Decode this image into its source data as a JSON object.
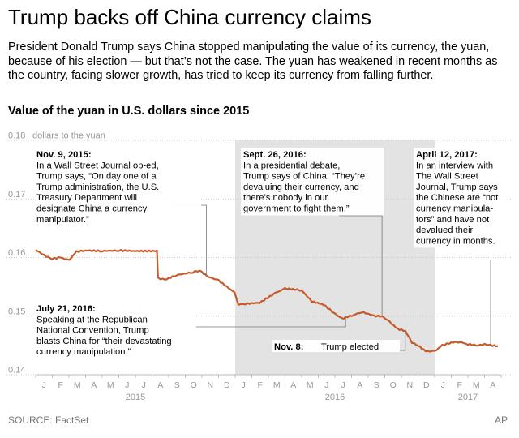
{
  "headline": "Trump backs off China currency claims",
  "intro": "President Donald Trump says China stopped manipulating the value of its currency, the yuan, because of his election — but that’s not the case. The yuan has weakened in recent months as the country, facing slower growth, has tried to keep its currency from falling further.",
  "footer": {
    "source": "SOURCE: FactSet",
    "credit": "AP"
  },
  "colors": {
    "line": "#c55a2b",
    "shade": "#e3e3e3",
    "grid": "#bdbdbd",
    "axis_text": "#999999"
  },
  "chart_data": {
    "type": "line",
    "title": "Value of the yuan in U.S. dollars since 2015",
    "ylabel": "dollars to the yuan",
    "ylim": [
      0.14,
      0.18
    ],
    "yticks": [
      "0.18",
      "0.17",
      "0.16",
      "0.15",
      "0.14"
    ],
    "month_labels": [
      "J",
      "F",
      "M",
      "A",
      "M",
      "J",
      "J",
      "A",
      "S",
      "O",
      "N",
      "D",
      "J",
      "F",
      "M",
      "A",
      "M",
      "J",
      "J",
      "A",
      "S",
      "O",
      "N",
      "D",
      "J",
      "F",
      "M",
      "A"
    ],
    "year_labels": [
      "2015",
      "2016",
      "2017"
    ],
    "shaded_range": {
      "from": "2016-01",
      "to": "2016-12",
      "label": "2016"
    },
    "series": [
      {
        "name": "USD per CNY",
        "points": [
          [
            "2015-01-01",
            0.1613
          ],
          [
            "2015-01-20",
            0.1602
          ],
          [
            "2015-02-01",
            0.1598
          ],
          [
            "2015-02-15",
            0.16
          ],
          [
            "2015-03-01",
            0.1595
          ],
          [
            "2015-03-15",
            0.161
          ],
          [
            "2015-04-01",
            0.1612
          ],
          [
            "2015-05-01",
            0.1611
          ],
          [
            "2015-06-01",
            0.1612
          ],
          [
            "2015-07-01",
            0.1611
          ],
          [
            "2015-08-10",
            0.1611
          ],
          [
            "2015-08-12",
            0.1565
          ],
          [
            "2015-08-25",
            0.1562
          ],
          [
            "2015-09-15",
            0.157
          ],
          [
            "2015-10-15",
            0.1575
          ],
          [
            "2015-10-28",
            0.1578
          ],
          [
            "2015-11-10",
            0.1568
          ],
          [
            "2015-12-01",
            0.1561
          ],
          [
            "2015-12-31",
            0.154
          ],
          [
            "2016-01-07",
            0.152
          ],
          [
            "2016-01-20",
            0.1521
          ],
          [
            "2016-02-15",
            0.1523
          ],
          [
            "2016-03-15",
            0.154
          ],
          [
            "2016-04-01",
            0.1547
          ],
          [
            "2016-04-15",
            0.1546
          ],
          [
            "2016-05-01",
            0.1544
          ],
          [
            "2016-05-20",
            0.1525
          ],
          [
            "2016-06-10",
            0.152
          ],
          [
            "2016-06-30",
            0.1505
          ],
          [
            "2016-07-15",
            0.1495
          ],
          [
            "2016-07-21",
            0.1498
          ],
          [
            "2016-08-05",
            0.1502
          ],
          [
            "2016-08-20",
            0.1507
          ],
          [
            "2016-09-15",
            0.15
          ],
          [
            "2016-09-26",
            0.15
          ],
          [
            "2016-10-10",
            0.149
          ],
          [
            "2016-10-25",
            0.1478
          ],
          [
            "2016-11-08",
            0.1475
          ],
          [
            "2016-11-20",
            0.1455
          ],
          [
            "2016-12-01",
            0.145
          ],
          [
            "2016-12-15",
            0.144
          ],
          [
            "2017-01-01",
            0.144
          ],
          [
            "2017-01-15",
            0.145
          ],
          [
            "2017-02-01",
            0.1455
          ],
          [
            "2017-02-15",
            0.1456
          ],
          [
            "2017-03-01",
            0.1452
          ],
          [
            "2017-03-20",
            0.145
          ],
          [
            "2017-04-01",
            0.1452
          ],
          [
            "2017-04-12",
            0.145
          ],
          [
            "2017-04-25",
            0.1449
          ]
        ]
      }
    ],
    "annotations": [
      {
        "id": "nov2015",
        "date": "2015-11-09",
        "title": "Nov. 9, 2015:",
        "lines": [
          "In a Wall Street Journal op-ed,",
          "Trump says, “On day one of a",
          "Trump administration, the U.S.",
          "Treasury Department will",
          "designate China a currency",
          "manipulator.”"
        ]
      },
      {
        "id": "jul2016",
        "date": "2016-07-21",
        "title": "July 21, 2016:",
        "lines": [
          "Speaking at the Republican",
          "National Convention, Trump",
          "blasts China for “their devastating",
          "currency manipulation.”"
        ]
      },
      {
        "id": "sep2016",
        "date": "2016-09-26",
        "title": "Sept. 26, 2016:",
        "lines": [
          "In a presidential debate,",
          "Trump says of China: “They’re",
          "devaluing their currency, and",
          "there’s nobody in our",
          "government to fight them.”"
        ]
      },
      {
        "id": "nov2016",
        "date": "2016-11-08",
        "title": "Nov. 8:",
        "lines": [],
        "tail": "Trump elected"
      },
      {
        "id": "apr2017",
        "date": "2017-04-12",
        "title": "April 12, 2017:",
        "lines": [
          "In an interview with",
          "The Wall Street",
          "Journal, Trump says",
          "the Chinese are “not",
          "currency manipula-",
          "tors” and have not",
          "devalued their",
          "currency in months."
        ]
      }
    ]
  }
}
